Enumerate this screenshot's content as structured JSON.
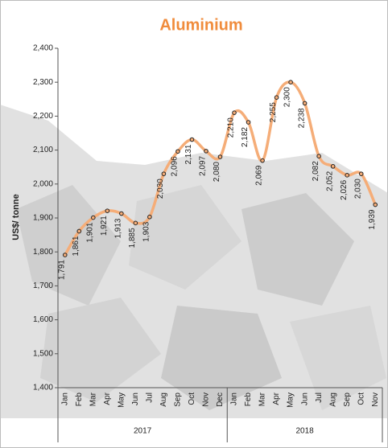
{
  "chart_data": {
    "type": "line",
    "title": "Aluminium",
    "y_label": "US$/ tonne",
    "categories": [
      "Jan",
      "Feb",
      "Mar",
      "Apr",
      "May",
      "Jun",
      "Jul",
      "Aug",
      "Sep",
      "Oct",
      "Nov",
      "Dec",
      "Jan",
      "Feb",
      "Mar",
      "Apr",
      "May",
      "Jun",
      "Jul",
      "Aug",
      "Sep",
      "Oct",
      "Nov"
    ],
    "x_groups": [
      "2017",
      "2018"
    ],
    "series": [
      {
        "name": "Aluminium",
        "color": "#f5ad78",
        "values": [
          1791,
          1861,
          1901,
          1921,
          1913,
          1885,
          1903,
          2030,
          2096,
          2131,
          2097,
          2080,
          2210,
          2182,
          2069,
          2255,
          2300,
          2238,
          2082,
          2052,
          2026,
          2030,
          1939
        ],
        "value_labels": [
          "1,791",
          "1,861",
          "1,901",
          "1,921",
          "1,913",
          "1,885",
          "1,903",
          "2,030",
          "2,096",
          "2,131",
          "2,097",
          "2,080",
          "2,210",
          "2,182",
          "2,069",
          "2,255",
          "2,300",
          "2,238",
          "2,082",
          "2,052",
          "2,026",
          "2,030",
          "1,939"
        ]
      }
    ],
    "ylim": [
      1400,
      2400
    ],
    "yticks": [
      {
        "value": 1400,
        "label": "1,400"
      },
      {
        "value": 1500,
        "label": "1,500"
      },
      {
        "value": 1600,
        "label": "1,600"
      },
      {
        "value": 1700,
        "label": "1,700"
      },
      {
        "value": 1800,
        "label": "1,800"
      },
      {
        "value": 1900,
        "label": "1,900"
      },
      {
        "value": 2000,
        "label": "2,000"
      },
      {
        "value": 2100,
        "label": "2,100"
      },
      {
        "value": 2200,
        "label": "2,200"
      },
      {
        "value": 2300,
        "label": "2,300"
      },
      {
        "value": 2400,
        "label": "2,400"
      }
    ],
    "grid": false
  }
}
